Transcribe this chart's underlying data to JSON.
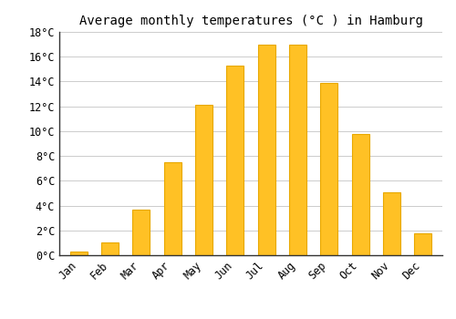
{
  "title": "Average monthly temperatures (°C ) in Hamburg",
  "months": [
    "Jan",
    "Feb",
    "Mar",
    "Apr",
    "May",
    "Jun",
    "Jul",
    "Aug",
    "Sep",
    "Oct",
    "Nov",
    "Dec"
  ],
  "temperatures": [
    0.3,
    1.0,
    3.7,
    7.5,
    12.1,
    15.3,
    17.0,
    17.0,
    13.9,
    9.8,
    5.1,
    1.8
  ],
  "bar_color": "#FFC125",
  "bar_edge_color": "#E8A800",
  "background_color": "#ffffff",
  "grid_color": "#cccccc",
  "ylim": [
    0,
    18
  ],
  "yticks": [
    0,
    2,
    4,
    6,
    8,
    10,
    12,
    14,
    16,
    18
  ],
  "ylabel_suffix": "°C",
  "title_fontsize": 10,
  "tick_fontsize": 8.5,
  "font_family": "monospace"
}
